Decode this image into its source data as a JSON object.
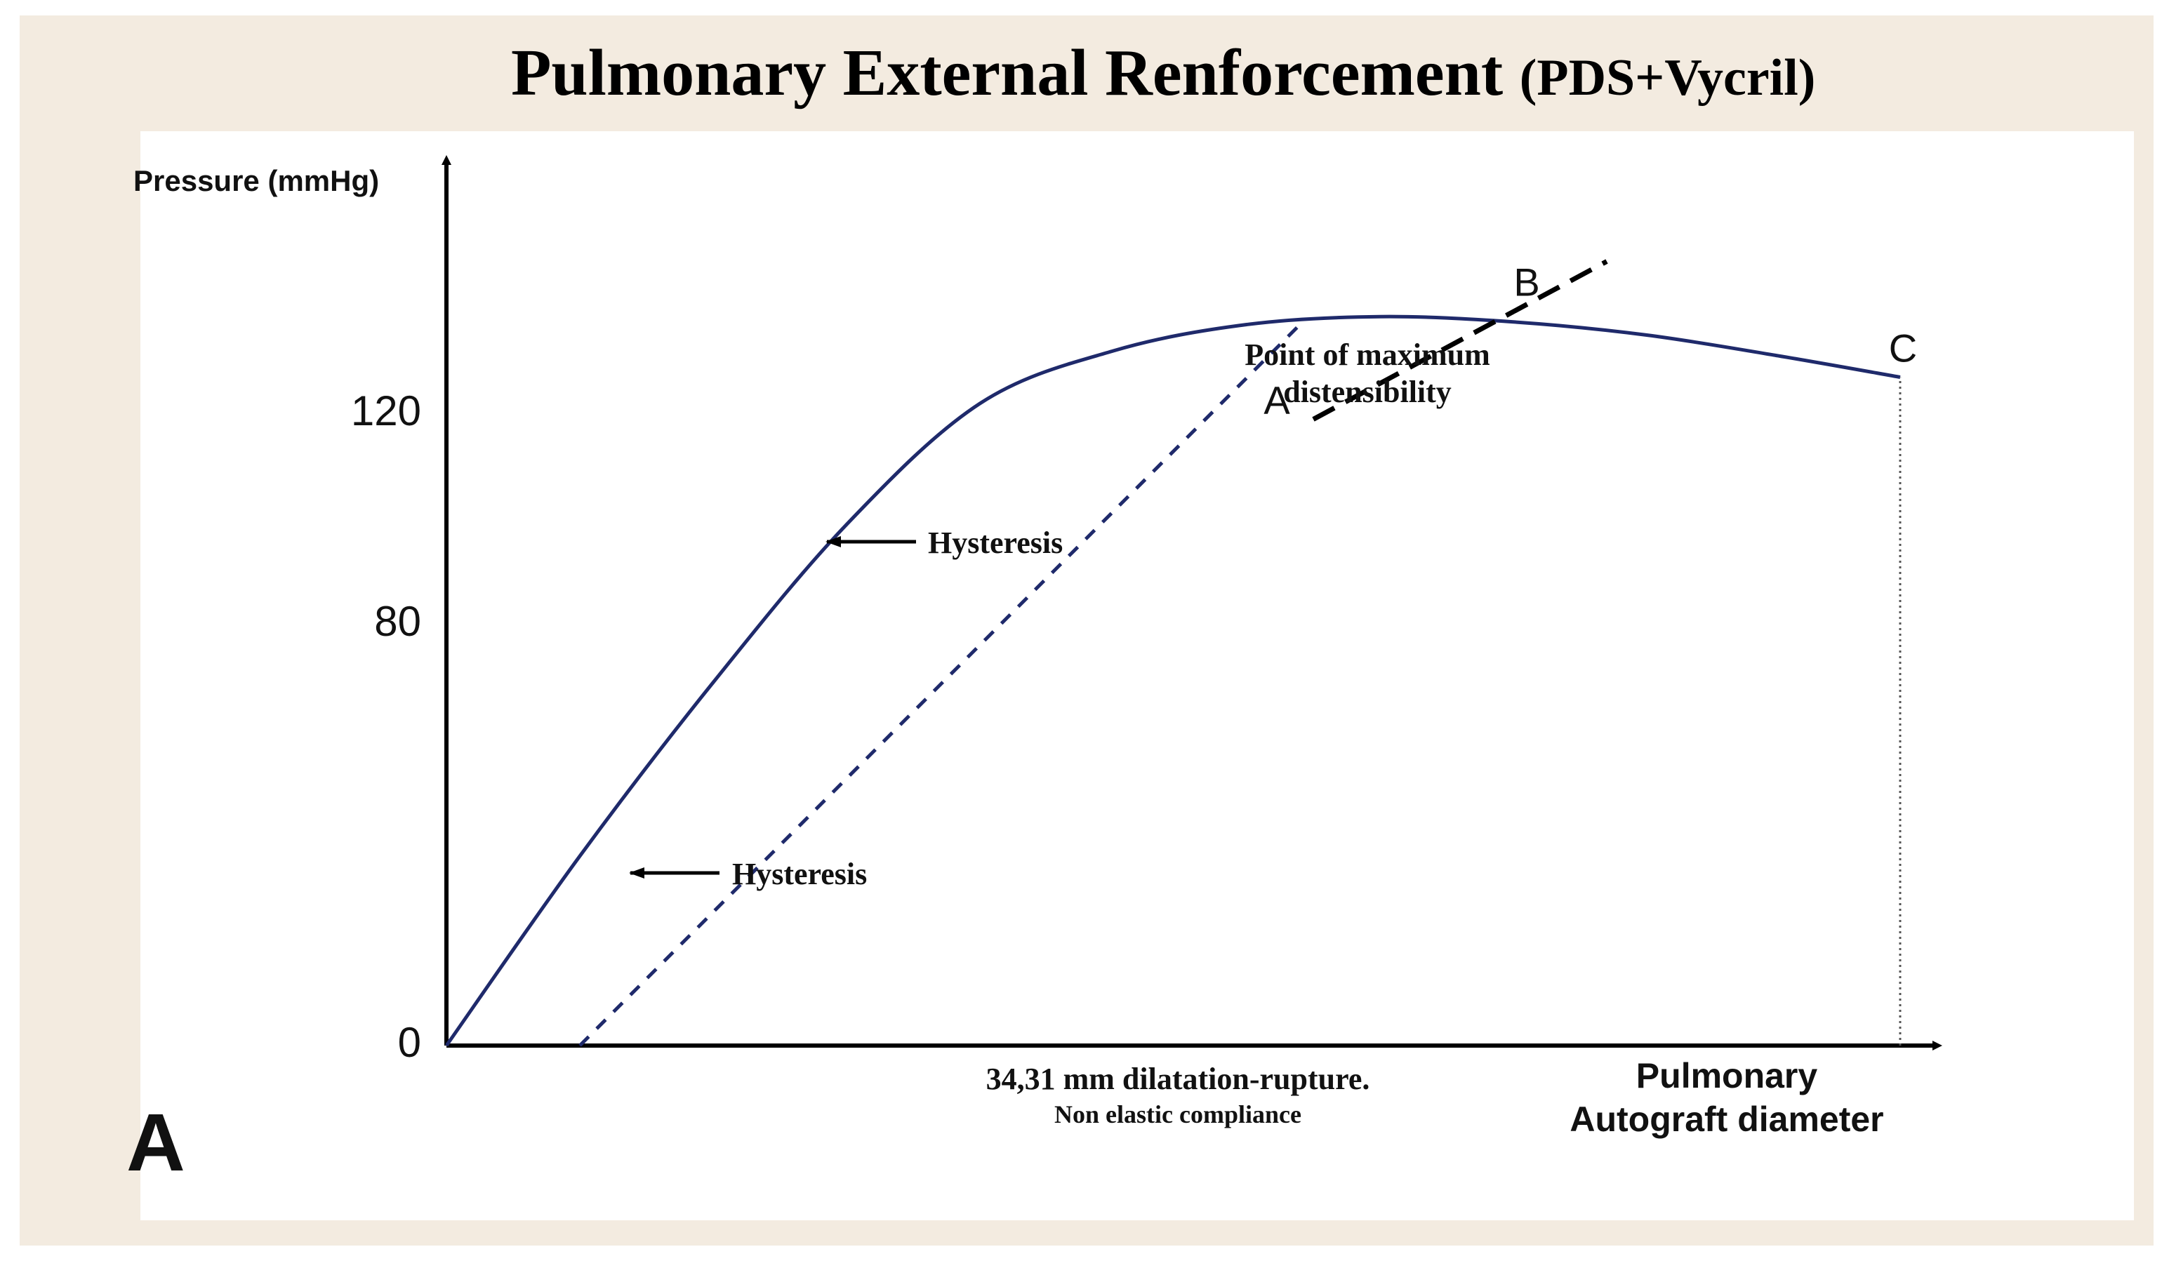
{
  "title": {
    "main": "Pulmonary External Renforcement",
    "suffix": "(PDS+Vycril)"
  },
  "panel_label": "A",
  "chart_data": {
    "type": "line",
    "ylabel": "Pressure (mmHg)",
    "xlabel_lines": [
      "Pulmonary",
      "Autograft diameter"
    ],
    "y_ticks": [
      {
        "value": 0,
        "label": "0"
      },
      {
        "value": 80,
        "label": "80"
      },
      {
        "value": 120,
        "label": "120"
      }
    ],
    "ylim": [
      0,
      152
    ],
    "xlim": [
      0,
      11
    ],
    "grid": false,
    "series": [
      {
        "style": "solid",
        "x": [
          0,
          1,
          2,
          3,
          4,
          5,
          6,
          7,
          8,
          9,
          10,
          10.9
        ],
        "y": [
          0,
          36,
          69,
          99,
          122,
          132,
          137,
          138.5,
          137.5,
          135,
          131,
          127
        ]
      },
      {
        "style": "dashed",
        "x": [
          1,
          6.4
        ],
        "y": [
          0,
          137
        ]
      },
      {
        "style": "long-dashed",
        "x": [
          6.5,
          8.7
        ],
        "y": [
          119,
          149
        ]
      },
      {
        "style": "dotted",
        "x": [
          10.9,
          10.9
        ],
        "y": [
          0,
          127
        ]
      }
    ],
    "points": [
      {
        "label": "A",
        "x": 6.5,
        "y": 119
      },
      {
        "label": "B",
        "x": 8.1,
        "y": 138.5
      },
      {
        "label": "C",
        "x": 10.9,
        "y": 127
      }
    ],
    "annotations": {
      "point_of_max": [
        "Point of maximum",
        "distensibility"
      ],
      "hysteresis_upper": "Hysteresis",
      "hysteresis_lower": "Hysteresis",
      "rupture_lines": [
        "34,31 mm dilatation-rupture.",
        "Non elastic compliance"
      ]
    }
  }
}
